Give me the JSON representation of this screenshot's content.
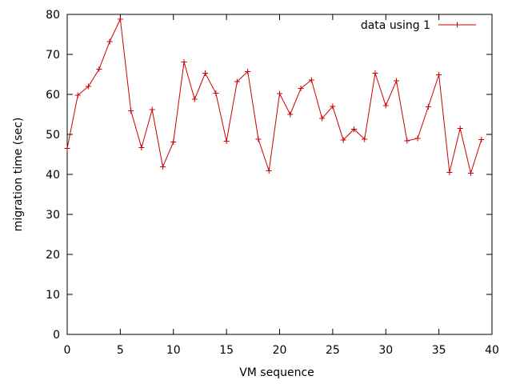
{
  "chart_data": {
    "type": "line",
    "title": "",
    "xlabel": "VM sequence",
    "ylabel": "migration time (sec)",
    "xlim": [
      0,
      40
    ],
    "ylim": [
      0,
      80
    ],
    "xticks": [
      0,
      5,
      10,
      15,
      20,
      25,
      30,
      35,
      40
    ],
    "yticks": [
      0,
      10,
      20,
      30,
      40,
      50,
      60,
      70,
      80
    ],
    "grid": false,
    "legend_position": "top-right",
    "colors": {
      "series": "#cc0000",
      "axes": "#000000"
    },
    "series": [
      {
        "name": "data using 1",
        "x": [
          0,
          1,
          2,
          3,
          4,
          5,
          6,
          7,
          8,
          9,
          10,
          11,
          12,
          13,
          14,
          15,
          16,
          17,
          18,
          19,
          20,
          21,
          22,
          23,
          24,
          25,
          26,
          27,
          28,
          29,
          30,
          31,
          32,
          33,
          34,
          35,
          36,
          37,
          38,
          39
        ],
        "y": [
          46.5,
          59.8,
          62.0,
          66.3,
          73.2,
          78.8,
          55.9,
          46.7,
          56.2,
          41.9,
          48.1,
          68.1,
          58.8,
          65.3,
          60.3,
          48.3,
          63.2,
          65.7,
          48.8,
          40.9,
          60.2,
          55.0,
          61.5,
          63.6,
          54.0,
          57.0,
          48.6,
          51.3,
          48.8,
          65.3,
          57.2,
          63.4,
          48.4,
          49.0,
          56.9,
          64.9,
          40.5,
          51.5,
          40.3,
          48.7
        ]
      }
    ]
  }
}
